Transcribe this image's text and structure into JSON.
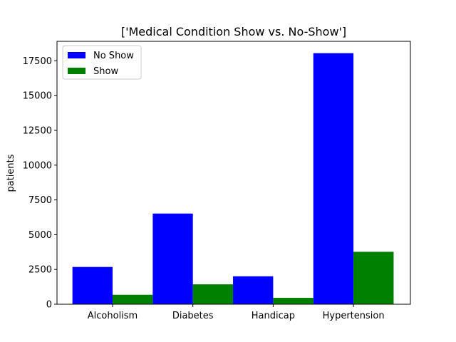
{
  "chart_data": {
    "type": "bar",
    "title": "['Medical Condition Show vs. No-Show']",
    "xlabel": "",
    "ylabel": "patients",
    "categories": [
      "Alcoholism",
      "Diabetes",
      "Handicap",
      "Hypertension"
    ],
    "series": [
      {
        "name": "No Show",
        "values": [
          2680,
          6520,
          2010,
          18050
        ],
        "color": "#0000ff"
      },
      {
        "name": "Show",
        "values": [
          680,
          1430,
          460,
          3770
        ],
        "color": "#008000"
      }
    ],
    "ylim": [
      0,
      18900
    ],
    "yticks": [
      0,
      2500,
      5000,
      7500,
      10000,
      12500,
      15000,
      17500
    ],
    "ytick_labels": [
      "0",
      "2500",
      "5000",
      "7500",
      "10000",
      "12500",
      "15000",
      "17500"
    ],
    "grid": false,
    "legend_position": "top-left"
  }
}
